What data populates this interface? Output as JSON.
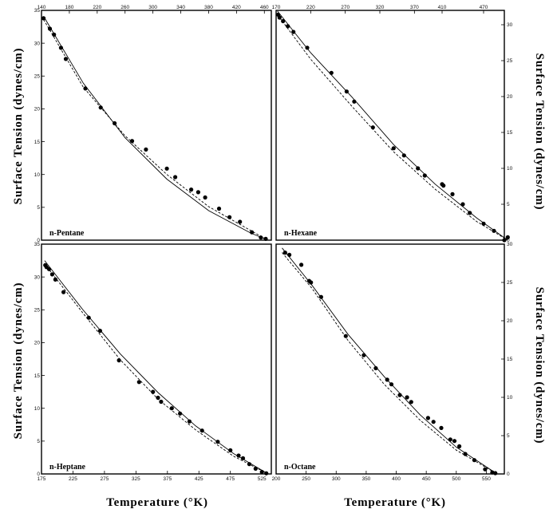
{
  "axis_labels": {
    "y_left_top": "Surface Tension (dynes/cm)",
    "y_right_top": "Surface Tension (dynes/cm)",
    "y_left_bottom": "Surface Tension (dynes/cm)",
    "y_right_bottom": "Surface Tension (dynes/cm)",
    "x_bottom_left": "Temperature (°K)",
    "x_bottom_right": "Temperature (°K)"
  },
  "chart_data": [
    {
      "type": "scatter",
      "name": "n-Pentane",
      "label": "n-Pentane",
      "xlim": [
        140,
        470
      ],
      "ylim": [
        0,
        35
      ],
      "x_ticks": [
        140,
        180,
        220,
        260,
        300,
        340,
        380,
        420,
        460
      ],
      "x_tick_position": "top",
      "y_ticks": [
        0,
        5,
        10,
        15,
        20,
        25,
        30,
        35
      ],
      "y_tick_side": "left",
      "points": [
        [
          143,
          33.8
        ],
        [
          152,
          32.2
        ],
        [
          158,
          31.3
        ],
        [
          168,
          29.3
        ],
        [
          175,
          27.6
        ],
        [
          203,
          23.1
        ],
        [
          225,
          20.2
        ],
        [
          245,
          17.8
        ],
        [
          270,
          15.1
        ],
        [
          290,
          13.8
        ],
        [
          320,
          10.9
        ],
        [
          332,
          9.6
        ],
        [
          355,
          7.7
        ],
        [
          365,
          7.3
        ],
        [
          375,
          6.5
        ],
        [
          395,
          4.8
        ],
        [
          410,
          3.5
        ],
        [
          425,
          2.8
        ],
        [
          442,
          1.2
        ],
        [
          455,
          0.4
        ],
        [
          462,
          0.2
        ]
      ],
      "curves": [
        [
          [
            143,
            34.1
          ],
          [
            200,
            23.9
          ],
          [
            260,
            15.6
          ],
          [
            320,
            9.3
          ],
          [
            380,
            4.5
          ],
          [
            440,
            1.1
          ],
          [
            465,
            0
          ]
        ],
        [
          [
            143,
            33.6
          ],
          [
            200,
            23.3
          ],
          [
            260,
            15.9
          ],
          [
            320,
            10.0
          ],
          [
            380,
            5.1
          ],
          [
            440,
            1.5
          ],
          [
            465,
            0
          ]
        ]
      ]
    },
    {
      "type": "scatter",
      "name": "n-Hexane",
      "label": "n-Hexane",
      "xlim": [
        170,
        500
      ],
      "ylim": [
        0,
        32
      ],
      "x_ticks": [
        170,
        220,
        270,
        320,
        370,
        410,
        470
      ],
      "x_tick_position": "top",
      "y_ticks": [
        0,
        5,
        10,
        15,
        20,
        25,
        30
      ],
      "y_tick_side": "right",
      "points": [
        [
          173,
          31.4
        ],
        [
          175,
          31.0
        ],
        [
          180,
          30.5
        ],
        [
          187,
          29.8
        ],
        [
          195,
          29.0
        ],
        [
          215,
          26.8
        ],
        [
          250,
          23.3
        ],
        [
          272,
          20.7
        ],
        [
          283,
          19.3
        ],
        [
          310,
          15.7
        ],
        [
          340,
          12.8
        ],
        [
          355,
          11.8
        ],
        [
          375,
          10.0
        ],
        [
          385,
          9.0
        ],
        [
          410,
          7.8
        ],
        [
          412,
          7.6
        ],
        [
          425,
          6.4
        ],
        [
          440,
          5.0
        ],
        [
          450,
          3.8
        ],
        [
          470,
          2.3
        ],
        [
          485,
          1.3
        ],
        [
          505,
          0.4
        ],
        [
          500,
          0
        ]
      ],
      "curves": [
        [
          [
            172,
            31.9
          ],
          [
            220,
            26.1
          ],
          [
            280,
            19.9
          ],
          [
            340,
            13.3
          ],
          [
            400,
            7.8
          ],
          [
            460,
            3.1
          ],
          [
            505,
            0
          ]
        ],
        [
          [
            172,
            31.4
          ],
          [
            220,
            25.2
          ],
          [
            280,
            18.6
          ],
          [
            340,
            12.3
          ],
          [
            400,
            7.1
          ],
          [
            460,
            2.6
          ],
          [
            505,
            0
          ]
        ]
      ]
    },
    {
      "type": "scatter",
      "name": "n-Heptane",
      "label": "n-Heptane",
      "xlim": [
        175,
        540
      ],
      "ylim": [
        0,
        35
      ],
      "x_ticks": [
        175,
        225,
        275,
        325,
        375,
        425,
        475,
        525
      ],
      "x_tick_position": "bottom",
      "y_ticks": [
        0,
        5,
        10,
        15,
        20,
        25,
        30,
        35
      ],
      "y_tick_side": "left",
      "points": [
        [
          181,
          31.8
        ],
        [
          183,
          31.5
        ],
        [
          187,
          31.2
        ],
        [
          192,
          30.4
        ],
        [
          197,
          29.6
        ],
        [
          210,
          27.7
        ],
        [
          250,
          23.8
        ],
        [
          268,
          21.8
        ],
        [
          298,
          17.3
        ],
        [
          330,
          14.0
        ],
        [
          352,
          12.5
        ],
        [
          360,
          11.6
        ],
        [
          365,
          11.0
        ],
        [
          382,
          10.0
        ],
        [
          395,
          9.2
        ],
        [
          410,
          8.0
        ],
        [
          430,
          6.6
        ],
        [
          455,
          4.9
        ],
        [
          475,
          3.6
        ],
        [
          488,
          2.8
        ],
        [
          495,
          2.4
        ],
        [
          505,
          1.5
        ],
        [
          515,
          0.8
        ],
        [
          525,
          0.3
        ],
        [
          532,
          0.1
        ]
      ],
      "curves": [
        [
          [
            180,
            32.5
          ],
          [
            240,
            25.1
          ],
          [
            300,
            18.3
          ],
          [
            360,
            12.4
          ],
          [
            420,
            7.3
          ],
          [
            480,
            3.1
          ],
          [
            535,
            0
          ]
        ],
        [
          [
            180,
            32.0
          ],
          [
            240,
            24.6
          ],
          [
            300,
            17.4
          ],
          [
            360,
            11.4
          ],
          [
            420,
            6.7
          ],
          [
            480,
            2.7
          ],
          [
            535,
            0
          ]
        ]
      ]
    },
    {
      "type": "scatter",
      "name": "n-Octane",
      "label": "n-Octane",
      "xlim": [
        200,
        580
      ],
      "ylim": [
        0,
        30
      ],
      "x_ticks": [
        200,
        250,
        300,
        350,
        400,
        450,
        500,
        550
      ],
      "x_tick_position": "bottom",
      "y_ticks": [
        0,
        5,
        10,
        15,
        20,
        25,
        30
      ],
      "y_tick_side": "right",
      "points": [
        [
          215,
          28.9
        ],
        [
          222,
          28.6
        ],
        [
          242,
          27.3
        ],
        [
          255,
          25.2
        ],
        [
          258,
          25.0
        ],
        [
          275,
          23.1
        ],
        [
          316,
          18.0
        ],
        [
          346,
          15.5
        ],
        [
          366,
          13.8
        ],
        [
          385,
          12.3
        ],
        [
          392,
          11.7
        ],
        [
          406,
          10.3
        ],
        [
          418,
          10.0
        ],
        [
          425,
          9.4
        ],
        [
          453,
          7.3
        ],
        [
          462,
          6.8
        ],
        [
          475,
          6.0
        ],
        [
          490,
          4.5
        ],
        [
          497,
          4.3
        ],
        [
          505,
          3.6
        ],
        [
          515,
          2.6
        ],
        [
          530,
          1.8
        ],
        [
          548,
          0.6
        ],
        [
          560,
          0.2
        ],
        [
          565,
          0.1
        ]
      ],
      "curves": [
        [
          [
            210,
            29.5
          ],
          [
            260,
            24.6
          ],
          [
            320,
            18.2
          ],
          [
            380,
            12.7
          ],
          [
            440,
            7.7
          ],
          [
            500,
            3.5
          ],
          [
            568,
            0
          ]
        ],
        [
          [
            210,
            28.9
          ],
          [
            260,
            24.2
          ],
          [
            320,
            17.4
          ],
          [
            380,
            11.7
          ],
          [
            440,
            7.0
          ],
          [
            500,
            3.1
          ],
          [
            568,
            0
          ]
        ]
      ]
    }
  ]
}
